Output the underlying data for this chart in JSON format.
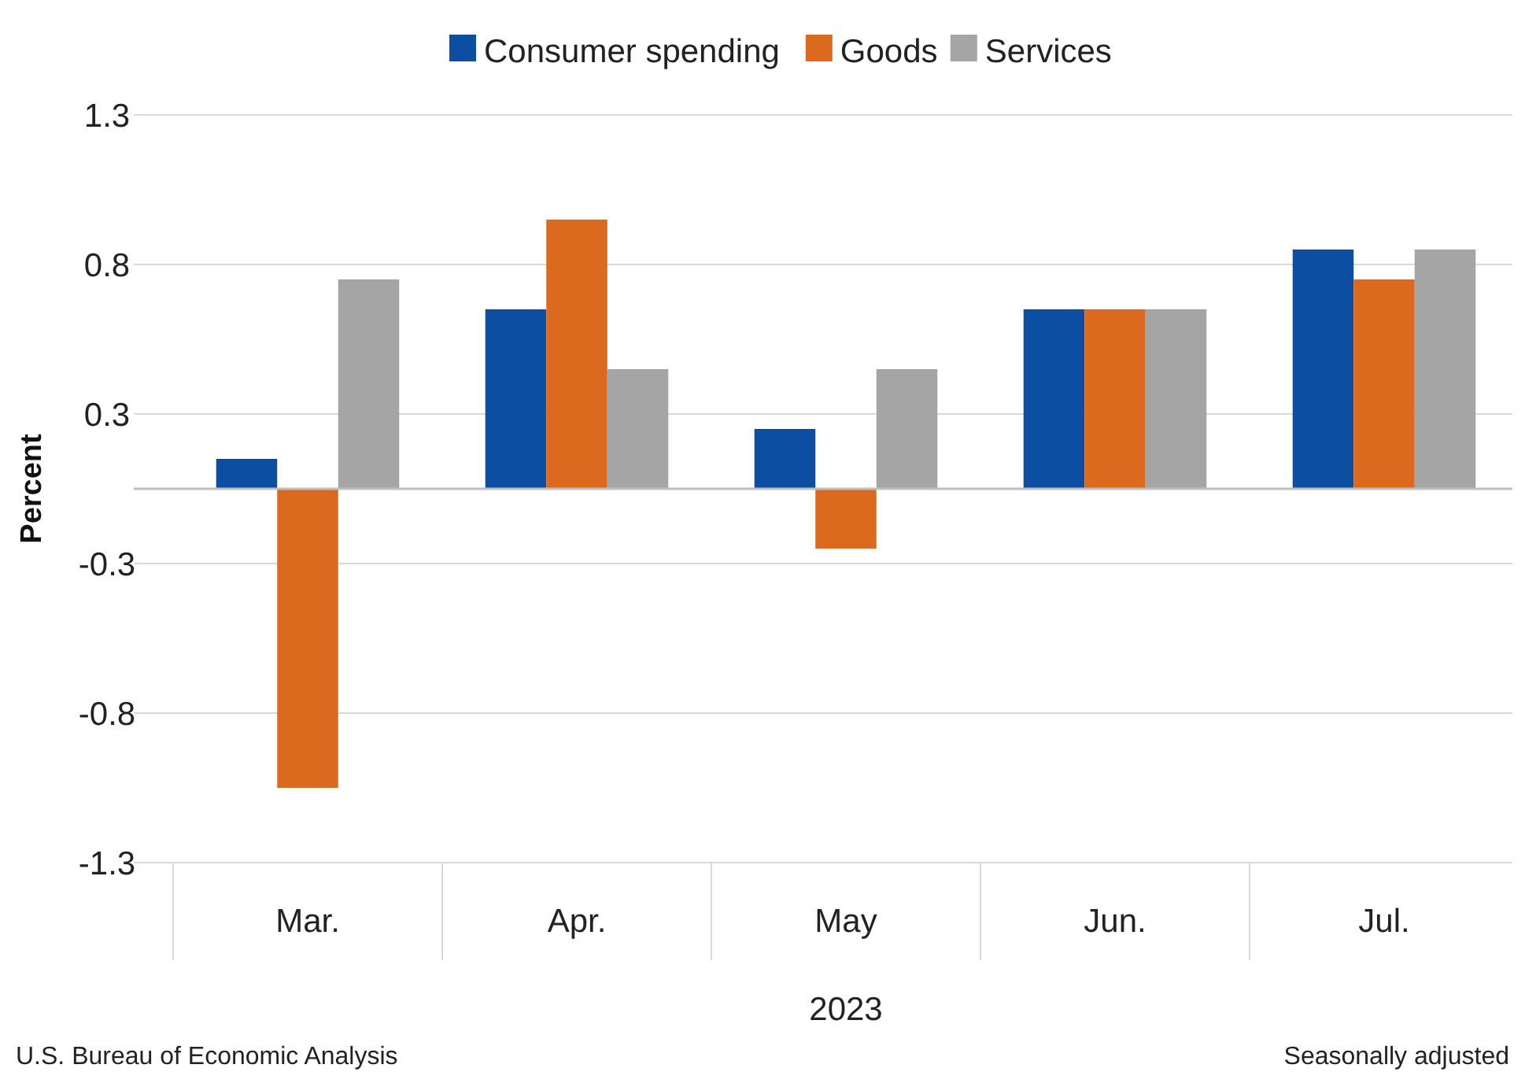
{
  "chart_data": {
    "type": "bar",
    "categories": [
      "Mar.",
      "Apr.",
      "May",
      "Jun.",
      "Jul."
    ],
    "xlabel": "2023",
    "ylabel": "Percent",
    "series": [
      {
        "name": "Consumer spending",
        "color": "#0b4ea2",
        "values": [
          0.1,
          0.6,
          0.2,
          0.6,
          0.8
        ]
      },
      {
        "name": "Goods",
        "color": "#dc6a1e",
        "values": [
          -1.0,
          0.9,
          -0.2,
          0.6,
          0.7
        ]
      },
      {
        "name": "Services",
        "color": "#a5a5a5",
        "values": [
          0.7,
          0.4,
          0.4,
          0.6,
          0.8
        ]
      }
    ],
    "ylim": [
      -1.25,
      1.25
    ],
    "yticks": [
      {
        "value": -1.25,
        "label": "-1.3"
      },
      {
        "value": -0.75,
        "label": "-0.8"
      },
      {
        "value": -0.25,
        "label": "-0.3"
      },
      {
        "value": 0.25,
        "label": "0.3"
      },
      {
        "value": 0.75,
        "label": "0.8"
      },
      {
        "value": 1.25,
        "label": "1.3"
      }
    ],
    "grid": "y",
    "legend": "top",
    "annotations": [
      "U.S. Bureau of Economic Analysis",
      "Seasonally adjusted"
    ]
  }
}
